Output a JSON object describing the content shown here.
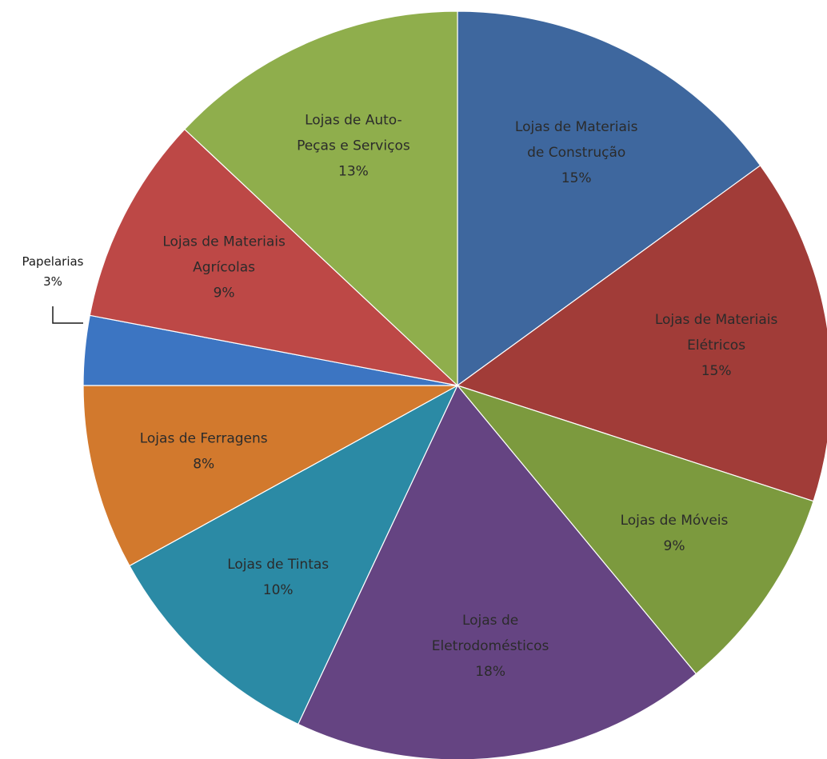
{
  "chart_data": {
    "type": "pie",
    "title": "",
    "slices": [
      {
        "label": [
          "Lojas de Materiais",
          "de Construção"
        ],
        "value": 15,
        "value_label": "15%",
        "color": "#3e679e"
      },
      {
        "label": [
          "Lojas de Materiais",
          "Elétricos"
        ],
        "value": 15,
        "value_label": "15%",
        "color": "#a13c38"
      },
      {
        "label": [
          "Lojas de Móveis"
        ],
        "value": 9,
        "value_label": "9%",
        "color": "#7c9a3e"
      },
      {
        "label": [
          "Lojas de",
          "Eletrodomésticos"
        ],
        "value": 18,
        "value_label": "18%",
        "color": "#654482"
      },
      {
        "label": [
          "Lojas de Tintas"
        ],
        "value": 10,
        "value_label": "10%",
        "color": "#2b8aa5"
      },
      {
        "label": [
          "Lojas de Ferragens"
        ],
        "value": 8,
        "value_label": "8%",
        "color": "#d2792d"
      },
      {
        "label": [
          "Papelarias"
        ],
        "value": 3,
        "value_label": "3%",
        "color": "#3c75c2",
        "label_outside": true
      },
      {
        "label": [
          "Lojas de Materiais",
          "Agrícolas"
        ],
        "value": 9,
        "value_label": "9%",
        "color": "#bd4846"
      },
      {
        "label": [
          "Lojas de Auto-",
          "Peças e Serviços"
        ],
        "value": 13,
        "value_label": "13%",
        "color": "#8fae4c"
      }
    ]
  }
}
